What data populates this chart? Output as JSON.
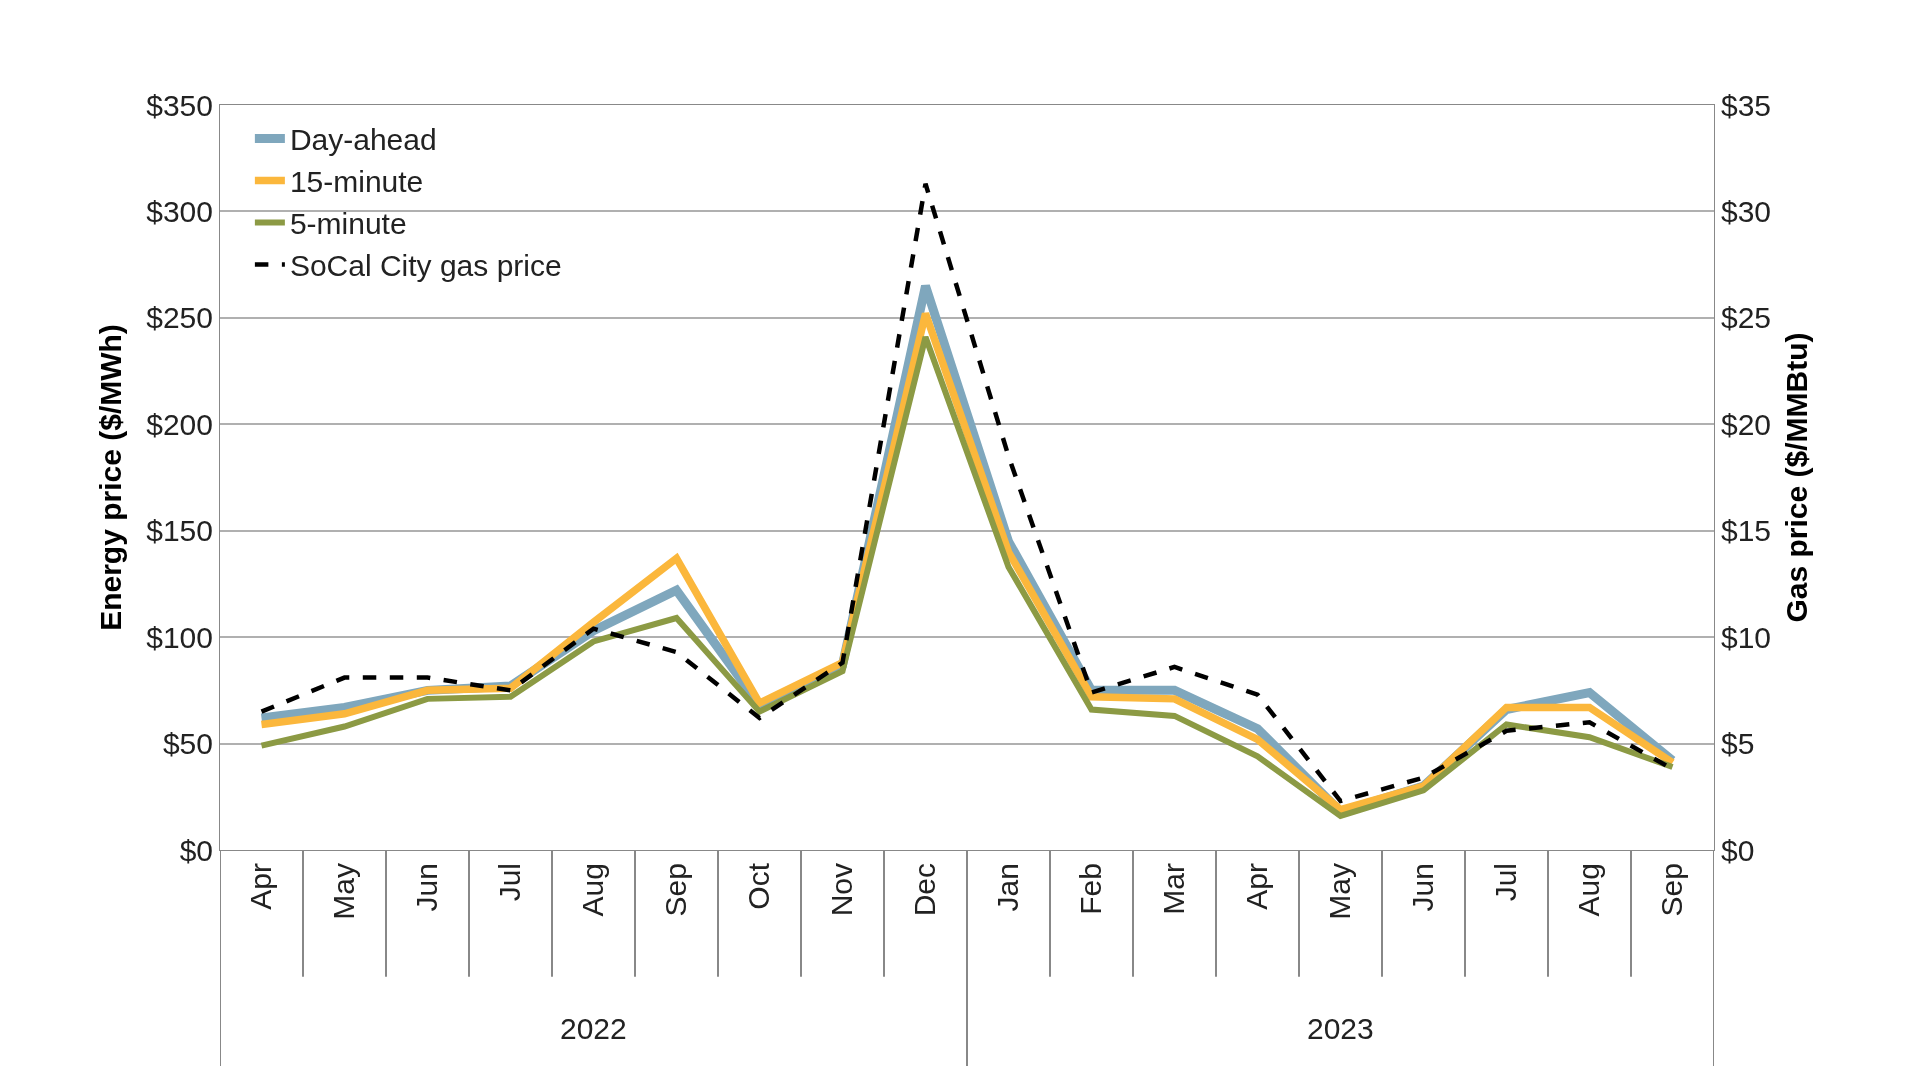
{
  "chart_data": {
    "type": "line",
    "ylabel": "Energy price ($/MWh)",
    "y2label": "Gas price ($/MMBtu)",
    "categories": [
      "Apr",
      "May",
      "Jun",
      "Jul",
      "Aug",
      "Sep",
      "Oct",
      "Nov",
      "Dec",
      "Jan",
      "Feb",
      "Mar",
      "Apr",
      "May",
      "Jun",
      "Jul",
      "Aug",
      "Sep"
    ],
    "series": [
      {
        "name": "Day-ahead",
        "color": "#7fa7bd",
        "values": [
          62,
          67,
          75,
          77,
          103,
          122,
          68,
          87,
          265,
          145,
          75,
          75,
          57,
          18,
          30,
          66,
          74,
          42
        ]
      },
      {
        "name": "15-minute",
        "color": "#fbb73c",
        "values": [
          59,
          64,
          75,
          76,
          107,
          137,
          69,
          88,
          252,
          140,
          72,
          71,
          52,
          19,
          30,
          67,
          67,
          41
        ]
      },
      {
        "name": "5-minute",
        "color": "#8c9a44",
        "values": [
          49,
          58,
          71,
          72,
          98,
          109,
          65,
          84,
          241,
          133,
          66,
          63,
          44,
          16,
          28,
          59,
          53,
          39
        ]
      },
      {
        "name": "SoCal City gas price",
        "color": "#000000",
        "axis": "y2",
        "line_style": "dashed",
        "values": [
          6.5,
          8.1,
          8.1,
          7.5,
          10.4,
          9.3,
          6.2,
          8.8,
          31.3,
          18.5,
          7.4,
          8.6,
          7.3,
          2.3,
          3.4,
          5.6,
          6.0,
          3.8
        ]
      }
    ],
    "ylim": [
      0,
      350
    ],
    "yticks": [
      {
        "value": 0,
        "label": "$0"
      },
      {
        "value": 50,
        "label": "$50"
      },
      {
        "value": 100,
        "label": "$100"
      },
      {
        "value": 150,
        "label": "$150"
      },
      {
        "value": 200,
        "label": "$200"
      },
      {
        "value": 250,
        "label": "$250"
      },
      {
        "value": 300,
        "label": "$300"
      },
      {
        "value": 350,
        "label": "$350"
      }
    ],
    "y2lim": [
      0,
      35
    ],
    "y2ticks": [
      {
        "value": 0,
        "label": "$0"
      },
      {
        "value": 5,
        "label": "$5"
      },
      {
        "value": 10,
        "label": "$10"
      },
      {
        "value": 15,
        "label": "$15"
      },
      {
        "value": 20,
        "label": "$20"
      },
      {
        "value": 25,
        "label": "$25"
      },
      {
        "value": 30,
        "label": "$30"
      },
      {
        "value": 35,
        "label": "$35"
      }
    ],
    "annotations": [
      "2022",
      "2023"
    ],
    "grid": "y",
    "legend": "top left",
    "marker": "none",
    "line_style": "solid"
  }
}
